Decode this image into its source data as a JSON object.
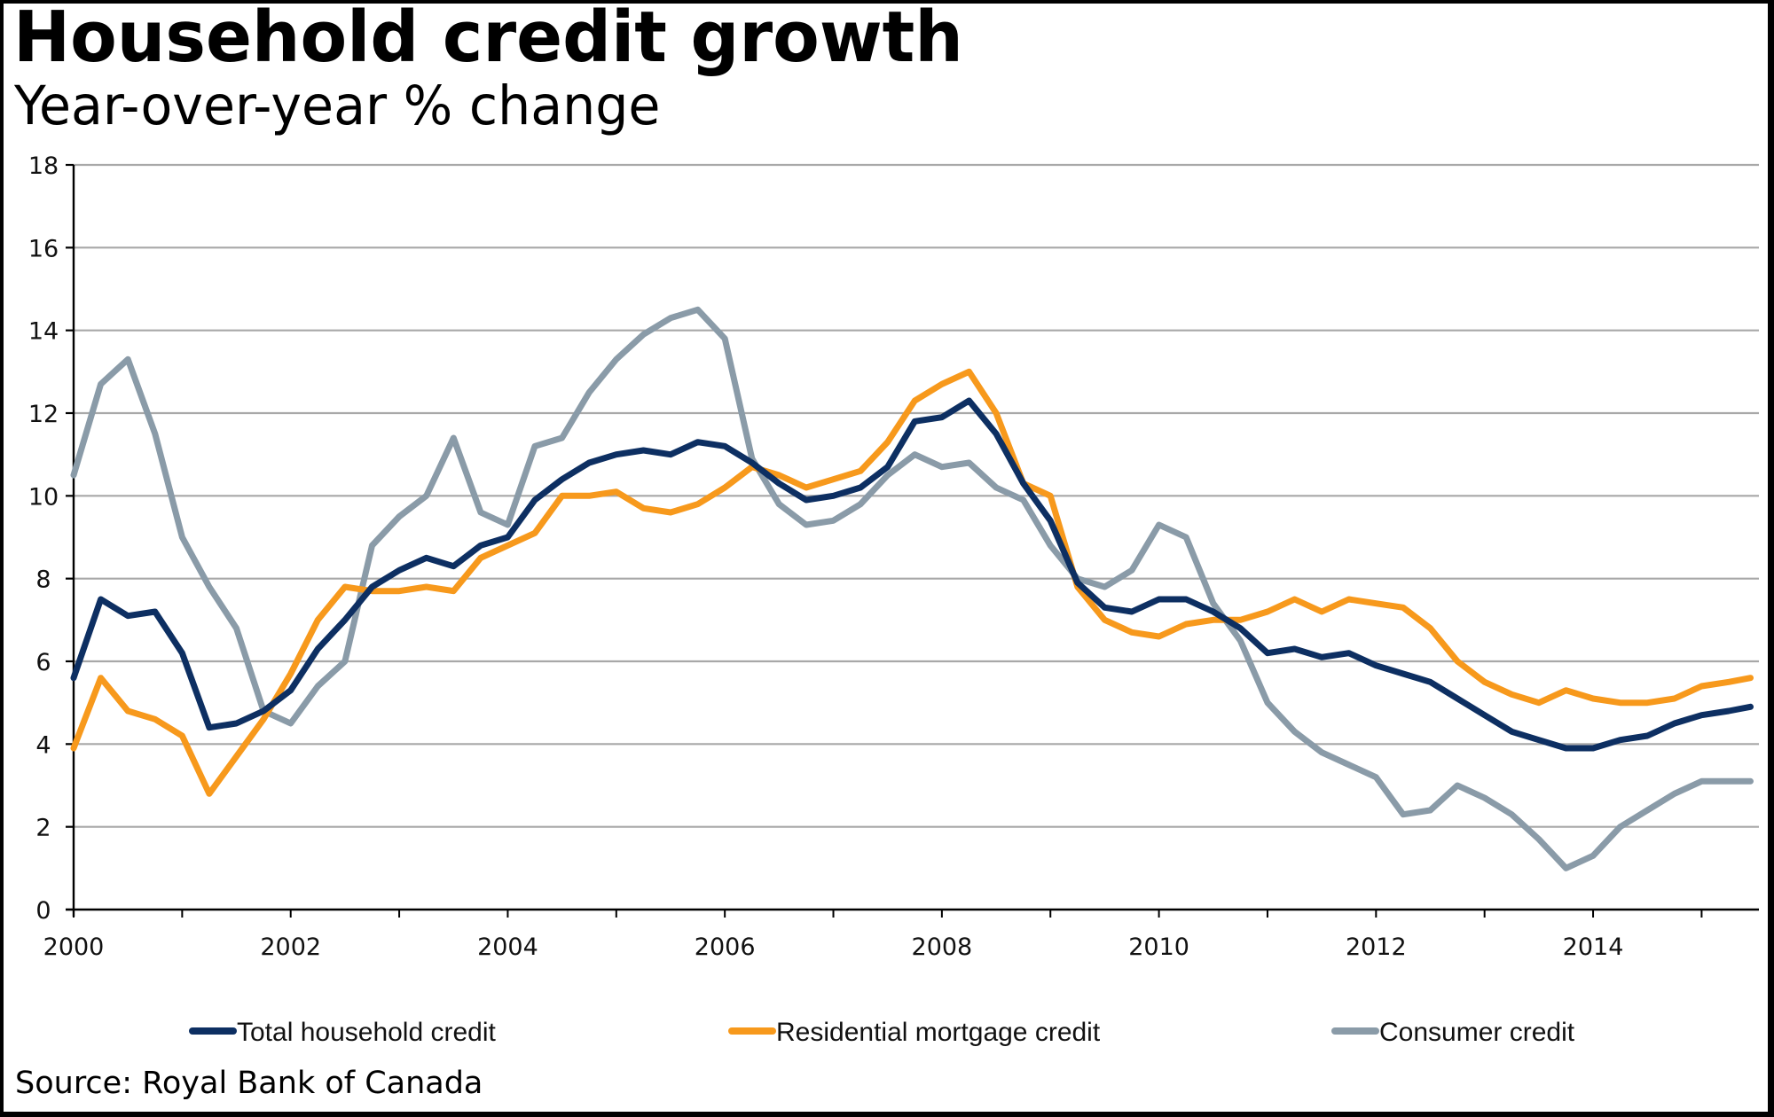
{
  "header": {
    "title": "Household credit growth",
    "subtitle": "Year-over-year % change"
  },
  "footer": {
    "source": "Source: Royal Bank of Canada"
  },
  "chart_data": {
    "type": "line",
    "title": "Household credit growth",
    "subtitle": "Year-over-year % change",
    "xlabel": "",
    "ylabel": "",
    "xlim": [
      2000,
      2015.5
    ],
    "ylim": [
      0,
      18
    ],
    "grid": true,
    "legend_position": "bottom",
    "x_ticks": [
      2000,
      2002,
      2004,
      2006,
      2008,
      2010,
      2012,
      2014
    ],
    "x_tick_labels": [
      "2000",
      "2002",
      "2004",
      "2006",
      "2008",
      "2010",
      "2012",
      "2014"
    ],
    "y_ticks": [
      0,
      2,
      4,
      6,
      8,
      10,
      12,
      14,
      16,
      18
    ],
    "y_tick_labels": [
      "0",
      "2",
      "4",
      "6",
      "8",
      "10",
      "12",
      "14",
      "16",
      "18"
    ],
    "x": [
      2000.0,
      2000.25,
      2000.5,
      2000.75,
      2001.0,
      2001.25,
      2001.5,
      2001.75,
      2002.0,
      2002.25,
      2002.5,
      2002.75,
      2003.0,
      2003.25,
      2003.5,
      2003.75,
      2004.0,
      2004.25,
      2004.5,
      2004.75,
      2005.0,
      2005.25,
      2005.5,
      2005.75,
      2006.0,
      2006.25,
      2006.5,
      2006.75,
      2007.0,
      2007.25,
      2007.5,
      2007.75,
      2008.0,
      2008.25,
      2008.5,
      2008.75,
      2009.0,
      2009.25,
      2009.5,
      2009.75,
      2010.0,
      2010.25,
      2010.5,
      2010.75,
      2011.0,
      2011.25,
      2011.5,
      2011.75,
      2012.0,
      2012.25,
      2012.5,
      2012.75,
      2013.0,
      2013.25,
      2013.5,
      2013.75,
      2014.0,
      2014.25,
      2014.5,
      2014.75,
      2015.0,
      2015.25,
      2015.45
    ],
    "series": [
      {
        "name": "Total household credit",
        "color": "#0d2f62",
        "values": [
          5.6,
          7.5,
          7.1,
          7.2,
          6.2,
          4.4,
          4.5,
          4.8,
          5.3,
          6.3,
          7.0,
          7.8,
          8.2,
          8.5,
          8.3,
          8.8,
          9.0,
          9.9,
          10.4,
          10.8,
          11.0,
          11.1,
          11.0,
          11.3,
          11.2,
          10.8,
          10.3,
          9.9,
          10.0,
          10.2,
          10.7,
          11.8,
          11.9,
          12.3,
          11.5,
          10.3,
          9.4,
          7.9,
          7.3,
          7.2,
          7.5,
          7.5,
          7.2,
          6.8,
          6.2,
          6.3,
          6.1,
          6.2,
          5.9,
          5.7,
          5.5,
          5.1,
          4.7,
          4.3,
          4.1,
          3.9,
          3.9,
          4.1,
          4.2,
          4.5,
          4.7,
          4.8,
          4.9
        ]
      },
      {
        "name": "Residential mortgage credit",
        "color": "#f7991c",
        "values": [
          3.9,
          5.6,
          4.8,
          4.6,
          4.2,
          2.8,
          3.7,
          4.6,
          5.7,
          7.0,
          7.8,
          7.7,
          7.7,
          7.8,
          7.7,
          8.5,
          8.8,
          9.1,
          10.0,
          10.0,
          10.1,
          9.7,
          9.6,
          9.8,
          10.2,
          10.7,
          10.5,
          10.2,
          10.4,
          10.6,
          11.3,
          12.3,
          12.7,
          13.0,
          12.0,
          10.3,
          10.0,
          7.8,
          7.0,
          6.7,
          6.6,
          6.9,
          7.0,
          7.0,
          7.2,
          7.5,
          7.2,
          7.5,
          7.4,
          7.3,
          6.8,
          6.0,
          5.5,
          5.2,
          5.0,
          5.3,
          5.1,
          5.0,
          5.0,
          5.1,
          5.4,
          5.5,
          5.6
        ]
      },
      {
        "name": "Consumer credit",
        "color": "#8a9ba8",
        "values": [
          10.5,
          12.7,
          13.3,
          11.5,
          9.0,
          7.8,
          6.8,
          4.8,
          4.5,
          5.4,
          6.0,
          8.8,
          9.5,
          10.0,
          11.4,
          9.6,
          9.3,
          11.2,
          11.4,
          12.5,
          13.3,
          13.9,
          14.3,
          14.5,
          13.8,
          10.9,
          9.8,
          9.3,
          9.4,
          9.8,
          10.5,
          11.0,
          10.7,
          10.8,
          10.2,
          9.9,
          8.8,
          8.0,
          7.8,
          8.2,
          9.3,
          9.0,
          7.4,
          6.5,
          5.0,
          4.3,
          3.8,
          3.5,
          3.2,
          2.3,
          2.4,
          3.0,
          2.7,
          2.3,
          1.7,
          1.0,
          1.3,
          2.0,
          2.4,
          2.8,
          3.1,
          3.1,
          3.1
        ]
      }
    ]
  }
}
